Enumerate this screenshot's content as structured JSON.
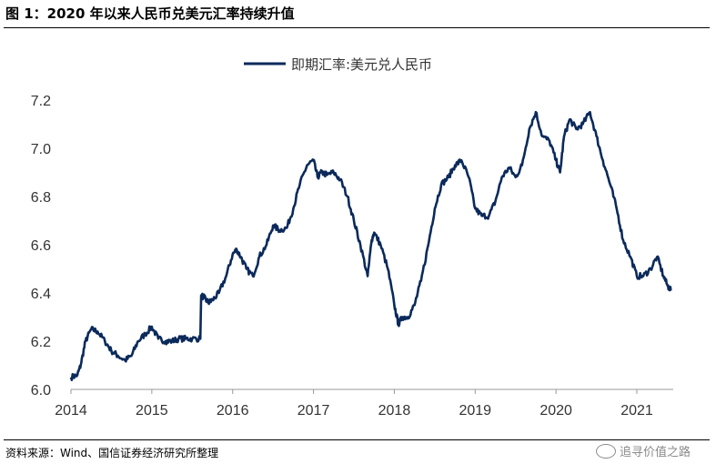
{
  "header": {
    "title": "图 1：2020 年以来人民币兑美元汇率持续升值"
  },
  "footer": {
    "source": "资料来源：Wind、国信证券经济研究所整理",
    "watermark": "追寻价值之路"
  },
  "chart_data": {
    "type": "line",
    "title": "",
    "xlabel": "",
    "ylabel": "",
    "legend_position": "top-center",
    "grid": false,
    "xlim": [
      2014.0,
      2021.45
    ],
    "ylim": [
      6.0,
      7.2
    ],
    "x_ticks": [
      "2014",
      "2015",
      "2016",
      "2017",
      "2018",
      "2019",
      "2020",
      "2021"
    ],
    "y_ticks": [
      "6.0",
      "6.2",
      "6.4",
      "6.6",
      "6.8",
      "7.0",
      "7.2"
    ],
    "series": [
      {
        "name": "即期汇率:美元兑人民币",
        "color": "#0b2a5b",
        "x": [
          2014.0,
          2014.08,
          2014.12,
          2014.18,
          2014.25,
          2014.33,
          2014.42,
          2014.5,
          2014.58,
          2014.67,
          2014.75,
          2014.83,
          2014.92,
          2015.0,
          2015.08,
          2015.17,
          2015.25,
          2015.33,
          2015.42,
          2015.5,
          2015.6,
          2015.61,
          2015.65,
          2015.7,
          2015.75,
          2015.83,
          2015.92,
          2016.0,
          2016.05,
          2016.1,
          2016.17,
          2016.25,
          2016.33,
          2016.42,
          2016.5,
          2016.58,
          2016.67,
          2016.75,
          2016.83,
          2016.92,
          2017.0,
          2017.05,
          2017.1,
          2017.17,
          2017.25,
          2017.33,
          2017.42,
          2017.5,
          2017.58,
          2017.67,
          2017.72,
          2017.75,
          2017.83,
          2017.92,
          2018.0,
          2018.05,
          2018.1,
          2018.17,
          2018.25,
          2018.33,
          2018.42,
          2018.5,
          2018.58,
          2018.67,
          2018.75,
          2018.83,
          2018.92,
          2019.0,
          2019.08,
          2019.17,
          2019.25,
          2019.33,
          2019.42,
          2019.5,
          2019.58,
          2019.67,
          2019.75,
          2019.83,
          2019.92,
          2020.0,
          2020.05,
          2020.1,
          2020.17,
          2020.25,
          2020.33,
          2020.42,
          2020.5,
          2020.58,
          2020.67,
          2020.75,
          2020.83,
          2020.92,
          2021.0,
          2021.08,
          2021.17,
          2021.25,
          2021.33,
          2021.38,
          2021.42
        ],
        "values": [
          6.05,
          6.06,
          6.1,
          6.2,
          6.25,
          6.24,
          6.2,
          6.16,
          6.14,
          6.12,
          6.14,
          6.2,
          6.23,
          6.26,
          6.21,
          6.2,
          6.2,
          6.21,
          6.21,
          6.21,
          6.21,
          6.39,
          6.38,
          6.36,
          6.37,
          6.4,
          6.47,
          6.56,
          6.58,
          6.55,
          6.5,
          6.47,
          6.55,
          6.6,
          6.68,
          6.66,
          6.67,
          6.75,
          6.85,
          6.93,
          6.95,
          6.88,
          6.9,
          6.89,
          6.9,
          6.87,
          6.8,
          6.7,
          6.6,
          6.47,
          6.62,
          6.65,
          6.6,
          6.5,
          6.35,
          6.27,
          6.3,
          6.3,
          6.35,
          6.45,
          6.6,
          6.75,
          6.85,
          6.88,
          6.93,
          6.95,
          6.88,
          6.75,
          6.72,
          6.72,
          6.78,
          6.88,
          6.92,
          6.88,
          6.93,
          7.08,
          7.15,
          7.05,
          7.03,
          6.95,
          6.9,
          7.05,
          7.12,
          7.08,
          7.1,
          7.15,
          7.05,
          6.95,
          6.85,
          6.75,
          6.62,
          6.55,
          6.47,
          6.47,
          6.5,
          6.55,
          6.47,
          6.43,
          6.41
        ]
      }
    ]
  }
}
